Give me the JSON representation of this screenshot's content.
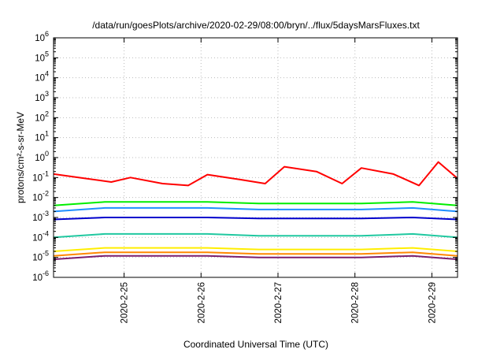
{
  "chart_data": {
    "type": "line",
    "title": "/data/run/goesPlots/archive/2020-02-29/08:00/bryn/../flux/5daysMarsFluxes.txt",
    "xlabel": "Coordinated Universal Time (UTC)",
    "ylabel": "protons/cm²-s-sr-MeV",
    "y_scale": "log",
    "ylim": [
      1e-06,
      1000000.0
    ],
    "xlim": [
      "2020-02-24 02:00",
      "2020-02-29 08:00"
    ],
    "y_ticks": [
      {
        "value": 1e-06,
        "base": "10",
        "exp": "-6"
      },
      {
        "value": 1e-05,
        "base": "10",
        "exp": "-5"
      },
      {
        "value": 0.0001,
        "base": "10",
        "exp": "-4"
      },
      {
        "value": 0.001,
        "base": "10",
        "exp": "-3"
      },
      {
        "value": 0.01,
        "base": "10",
        "exp": "-2"
      },
      {
        "value": 0.1,
        "base": "10",
        "exp": "-1"
      },
      {
        "value": 1,
        "base": "10",
        "exp": "0"
      },
      {
        "value": 10,
        "base": "10",
        "exp": "1"
      },
      {
        "value": 100,
        "base": "10",
        "exp": "2"
      },
      {
        "value": 1000,
        "base": "10",
        "exp": "3"
      },
      {
        "value": 10000,
        "base": "10",
        "exp": "4"
      },
      {
        "value": 100000,
        "base": "10",
        "exp": "5"
      },
      {
        "value": 1000000,
        "base": "10",
        "exp": "6"
      }
    ],
    "x_ticks": [
      "2020-2-25",
      "2020-2-26",
      "2020-2-27",
      "2020-2-28",
      "2020-2-29"
    ],
    "grid": true,
    "series": [
      {
        "color": "#ff0000",
        "x": [
          "2020-02-24 02:00",
          "2020-02-24 12:00",
          "2020-02-24 20:00",
          "2020-02-25 02:00",
          "2020-02-25 12:00",
          "2020-02-25 20:00",
          "2020-02-26 02:00",
          "2020-02-26 12:00",
          "2020-02-26 20:00",
          "2020-02-27 02:00",
          "2020-02-27 12:00",
          "2020-02-27 20:00",
          "2020-02-28 02:00",
          "2020-02-28 12:00",
          "2020-02-28 20:00",
          "2020-02-29 02:00",
          "2020-02-29 08:00"
        ],
        "values": [
          0.15,
          0.09,
          0.06,
          0.1,
          0.05,
          0.04,
          0.14,
          0.08,
          0.05,
          0.35,
          0.2,
          0.05,
          0.3,
          0.15,
          0.04,
          0.6,
          0.09
        ]
      },
      {
        "color": "#00ee00",
        "x": [
          "2020-02-24 02:00",
          "2020-02-24 18:00",
          "2020-02-25 10:00",
          "2020-02-26 02:00",
          "2020-02-26 18:00",
          "2020-02-27 10:00",
          "2020-02-28 02:00",
          "2020-02-28 18:00",
          "2020-02-29 08:00"
        ],
        "values": [
          0.004,
          0.006,
          0.006,
          0.006,
          0.005,
          0.005,
          0.005,
          0.006,
          0.004
        ]
      },
      {
        "color": "#1f8fff",
        "x": [
          "2020-02-24 02:00",
          "2020-02-24 18:00",
          "2020-02-25 10:00",
          "2020-02-26 02:00",
          "2020-02-26 18:00",
          "2020-02-27 10:00",
          "2020-02-28 02:00",
          "2020-02-28 18:00",
          "2020-02-29 08:00"
        ],
        "values": [
          0.002,
          0.003,
          0.003,
          0.003,
          0.0025,
          0.0025,
          0.0025,
          0.003,
          0.002
        ]
      },
      {
        "color": "#0000cc",
        "x": [
          "2020-02-24 02:00",
          "2020-02-24 18:00",
          "2020-02-25 10:00",
          "2020-02-26 02:00",
          "2020-02-26 18:00",
          "2020-02-27 10:00",
          "2020-02-28 02:00",
          "2020-02-28 18:00",
          "2020-02-29 08:00"
        ],
        "values": [
          0.0008,
          0.001,
          0.001,
          0.001,
          0.0009,
          0.0009,
          0.0009,
          0.001,
          0.0008
        ]
      },
      {
        "color": "#20c8a0",
        "x": [
          "2020-02-24 02:00",
          "2020-02-24 18:00",
          "2020-02-25 10:00",
          "2020-02-26 02:00",
          "2020-02-26 18:00",
          "2020-02-27 10:00",
          "2020-02-28 02:00",
          "2020-02-28 18:00",
          "2020-02-29 08:00"
        ],
        "values": [
          0.0001,
          0.00015,
          0.00015,
          0.00015,
          0.00012,
          0.00012,
          0.00012,
          0.00015,
          0.0001
        ]
      },
      {
        "color": "#ffee00",
        "x": [
          "2020-02-24 02:00",
          "2020-02-24 18:00",
          "2020-02-25 10:00",
          "2020-02-26 02:00",
          "2020-02-26 18:00",
          "2020-02-27 10:00",
          "2020-02-28 02:00",
          "2020-02-28 18:00",
          "2020-02-29 08:00"
        ],
        "values": [
          2e-05,
          3e-05,
          3e-05,
          3e-05,
          2.5e-05,
          2.5e-05,
          2.5e-05,
          3e-05,
          2e-05
        ]
      },
      {
        "color": "#ff8800",
        "x": [
          "2020-02-24 02:00",
          "2020-02-24 18:00",
          "2020-02-25 10:00",
          "2020-02-26 02:00",
          "2020-02-26 18:00",
          "2020-02-27 10:00",
          "2020-02-28 02:00",
          "2020-02-28 18:00",
          "2020-02-29 08:00"
        ],
        "values": [
          1.2e-05,
          1.8e-05,
          1.8e-05,
          1.8e-05,
          1.5e-05,
          1.5e-05,
          1.5e-05,
          1.8e-05,
          1.2e-05
        ]
      },
      {
        "color": "#7a1e6e",
        "x": [
          "2020-02-24 02:00",
          "2020-02-24 18:00",
          "2020-02-25 10:00",
          "2020-02-26 02:00",
          "2020-02-26 18:00",
          "2020-02-27 10:00",
          "2020-02-28 02:00",
          "2020-02-28 18:00",
          "2020-02-29 08:00"
        ],
        "values": [
          8e-06,
          1.2e-05,
          1.2e-05,
          1.2e-05,
          1e-05,
          1e-05,
          1e-05,
          1.2e-05,
          8e-06
        ]
      }
    ]
  }
}
